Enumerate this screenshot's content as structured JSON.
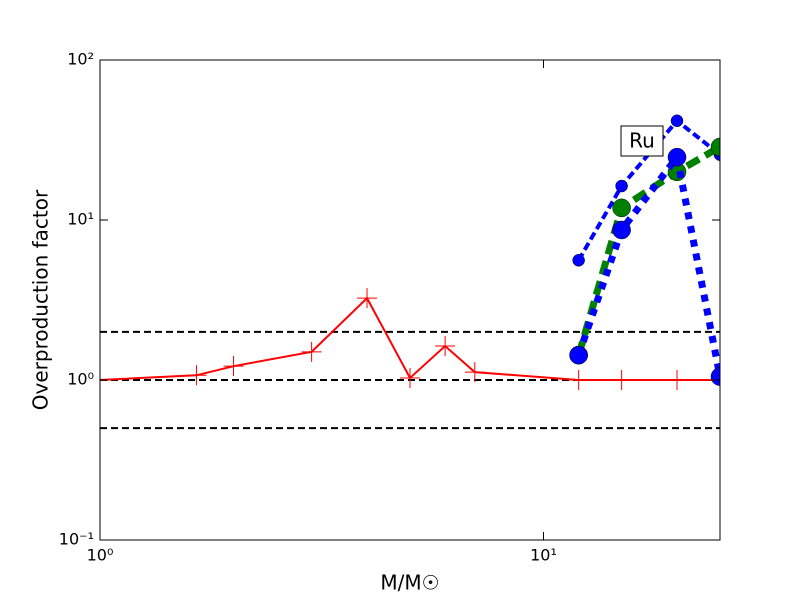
{
  "chart_data": {
    "type": "line",
    "xlabel": "M/M☉",
    "ylabel": "Overproduction factor",
    "xscale": "log",
    "yscale": "log",
    "xlim": [
      1,
      25
    ],
    "ylim": [
      0.1,
      100
    ],
    "xticks": [
      {
        "value": 1,
        "label": "10⁰"
      },
      {
        "value": 10,
        "label": "10¹"
      }
    ],
    "yticks": [
      {
        "value": 0.1,
        "label": "10⁻¹"
      },
      {
        "value": 1,
        "label": "10⁰"
      },
      {
        "value": 10,
        "label": "10¹"
      },
      {
        "value": 100,
        "label": "10²"
      }
    ],
    "hlines": [
      2,
      1,
      0.5
    ],
    "hline_color": "#000000",
    "annotation": "Ru",
    "series": [
      {
        "color": "#ff0000",
        "marker": "+",
        "linestyle": "solid",
        "linewidth": 2,
        "marker_size": 10,
        "x": [
          1,
          1.65,
          2,
          3,
          4,
          5,
          6,
          7,
          12,
          15,
          20,
          25
        ],
        "values": [
          1.0,
          1.07,
          1.22,
          1.5,
          3.25,
          1.03,
          1.63,
          1.12,
          1.0,
          1.0,
          1.0,
          1.0
        ]
      },
      {
        "color": "#0000ff",
        "marker": "o",
        "linestyle": "dashed",
        "linewidth": 4,
        "marker_size": 6,
        "x": [
          12,
          15,
          20,
          25
        ],
        "values": [
          5.6,
          16.3,
          41.7,
          25.6
        ]
      },
      {
        "color": "#008000",
        "marker": "o",
        "linestyle": "dashed",
        "linewidth": 7,
        "marker_size": 9,
        "x": [
          12,
          15,
          20,
          25
        ],
        "values": [
          1.43,
          11.9,
          20,
          28.6
        ]
      },
      {
        "color": "#0000ff",
        "marker": "o",
        "linestyle": "dotted",
        "linewidth": 7,
        "marker_size": 9,
        "x": [
          12,
          15,
          20,
          25
        ],
        "values": [
          1.43,
          8.66,
          24.7,
          1.05
        ]
      }
    ]
  }
}
